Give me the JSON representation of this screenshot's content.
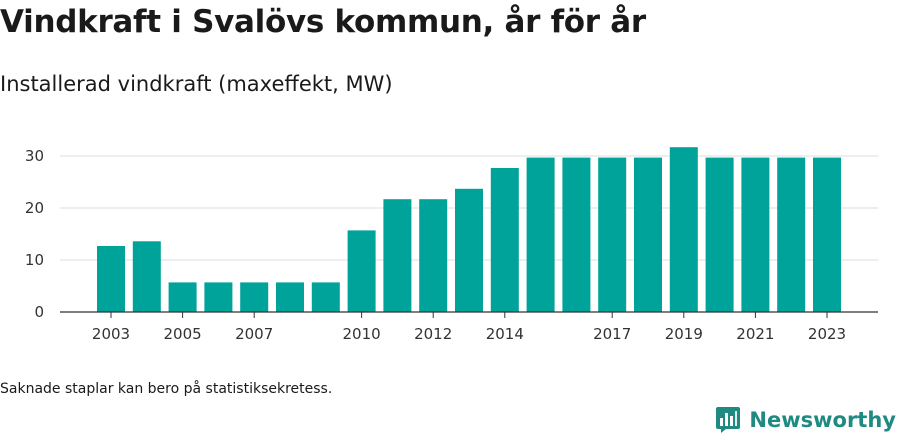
{
  "header": {
    "title": "Vindkraft i Svalövs kommun, år för år",
    "subtitle": "Installerad vindkraft (maxeffekt, MW)"
  },
  "footer": {
    "note": "Saknade staplar kan bero på statistiksekretess.",
    "brand": "Newsworthy",
    "brand_icon": "bar-chart-speech-bubble-icon"
  },
  "colors": {
    "bar": "#00a39a",
    "grid": "#dddddd",
    "axis": "#333333",
    "brand": "#1f8a82"
  },
  "chart_data": {
    "type": "bar",
    "title": "Vindkraft i Svalövs kommun, år för år",
    "subtitle": "Installerad vindkraft (maxeffekt, MW)",
    "xlabel": "",
    "ylabel": "",
    "categories": [
      2003,
      2004,
      2005,
      2006,
      2007,
      2008,
      2009,
      2010,
      2011,
      2012,
      2013,
      2014,
      2015,
      2016,
      2017,
      2018,
      2019,
      2020,
      2021,
      2022,
      2023
    ],
    "values": [
      12.7,
      13.6,
      5.7,
      5.7,
      5.7,
      5.7,
      5.7,
      15.7,
      21.7,
      21.7,
      23.7,
      27.7,
      29.7,
      29.7,
      29.7,
      29.7,
      31.7,
      29.7,
      29.7,
      29.7,
      29.7
    ],
    "x_tick_labels": [
      "2003",
      "2005",
      "2007",
      "2010",
      "2012",
      "2014",
      "2017",
      "2019",
      "2021",
      "2023"
    ],
    "y_ticks": [
      0,
      10,
      20,
      30
    ],
    "ylim": [
      0,
      32
    ],
    "grid": true,
    "legend": "none"
  }
}
